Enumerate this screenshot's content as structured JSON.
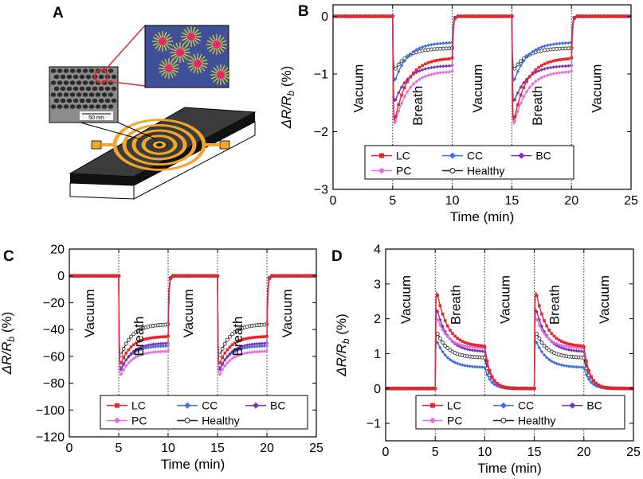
{
  "panel_labels": {
    "a": "A",
    "b": "B",
    "c": "C",
    "d": "D"
  },
  "schematic": {
    "scale_bar": "50 nm"
  },
  "colors": {
    "LC": "#e8262b",
    "CC": "#3f6fe0",
    "BC": "#7a33b4",
    "PC": "#e070e0",
    "Healthy": "#222222",
    "board_top": "#3b3b3b",
    "electrode": "#f2a72c",
    "inset_bg": "#3f4f98"
  },
  "chart_data": [
    {
      "panel": "B",
      "type": "line",
      "xlabel": "Time (min)",
      "ylabel": "ΔR/R",
      "ylabel_sub": "b",
      "ylabel_unit": "(%)",
      "xlim": [
        0,
        25
      ],
      "ylim": [
        -3,
        0.2
      ],
      "xticks": [
        0,
        5,
        10,
        15,
        20,
        25
      ],
      "yticks": [
        -3,
        -2,
        -1,
        0
      ],
      "phase_boundaries": [
        5,
        10,
        15,
        20
      ],
      "phases": [
        {
          "label": "Vacuum",
          "x": 2.5,
          "y": -1.25
        },
        {
          "label": "Breath",
          "x": 7.5,
          "y": -1.55
        },
        {
          "label": "Vacuum",
          "x": 12.5,
          "y": -1.25
        },
        {
          "label": "Breath",
          "x": 17.5,
          "y": -1.55
        },
        {
          "label": "Vacuum",
          "x": 22.5,
          "y": -1.25
        }
      ],
      "response": "decrease",
      "series": [
        {
          "name": "LC",
          "peak": -2.0,
          "end": -0.72
        },
        {
          "name": "CC",
          "peak": -1.25,
          "end": -0.45
        },
        {
          "name": "BC",
          "peak": -1.6,
          "end": -0.85
        },
        {
          "name": "PC",
          "peak": -2.05,
          "end": -0.95
        },
        {
          "name": "Healthy",
          "peak": -1.0,
          "end": -0.55
        }
      ]
    },
    {
      "panel": "C",
      "type": "line",
      "xlabel": "Time (min)",
      "ylabel": "ΔR/R",
      "ylabel_sub": "b",
      "ylabel_unit": "(%)",
      "xlim": [
        0,
        25
      ],
      "ylim": [
        -120,
        20
      ],
      "xticks": [
        0,
        5,
        10,
        15,
        20,
        25
      ],
      "yticks": [
        -120,
        -100,
        -80,
        -60,
        -40,
        -20,
        0,
        20
      ],
      "phase_boundaries": [
        5,
        10,
        15,
        20
      ],
      "phases": [
        {
          "label": "Vacuum",
          "x": 2.5,
          "y": -28
        },
        {
          "label": "Breath",
          "x": 7.5,
          "y": -45
        },
        {
          "label": "Vacuum",
          "x": 12.5,
          "y": -28
        },
        {
          "label": "Breath",
          "x": 17.5,
          "y": -45
        },
        {
          "label": "Vacuum",
          "x": 22.5,
          "y": -28
        }
      ],
      "response": "decrease",
      "series": [
        {
          "name": "LC",
          "peak": -70,
          "end": -45
        },
        {
          "name": "CC",
          "peak": -73,
          "end": -52
        },
        {
          "name": "BC",
          "peak": -75,
          "end": -50
        },
        {
          "name": "PC",
          "peak": -78,
          "end": -56
        },
        {
          "name": "Healthy",
          "peak": -65,
          "end": -36
        }
      ]
    },
    {
      "panel": "D",
      "type": "line",
      "xlabel": "Time (min)",
      "ylabel": "ΔR/R",
      "ylabel_sub": "b",
      "ylabel_unit": "(%)",
      "xlim": [
        0,
        25
      ],
      "ylim": [
        -1.5,
        4
      ],
      "xticks": [
        0,
        5,
        10,
        15,
        20,
        25
      ],
      "yticks": [
        -1,
        0,
        1,
        2,
        3,
        4
      ],
      "phase_boundaries": [
        5,
        10,
        15,
        20
      ],
      "phases": [
        {
          "label": "Vacuum",
          "x": 2.5,
          "y": 2.55
        },
        {
          "label": "Breath",
          "x": 7.5,
          "y": 2.4
        },
        {
          "label": "Vacuum",
          "x": 12.5,
          "y": 2.55
        },
        {
          "label": "Breath",
          "x": 17.5,
          "y": 2.4
        },
        {
          "label": "Vacuum",
          "x": 22.5,
          "y": 2.55
        }
      ],
      "response": "increase",
      "series": [
        {
          "name": "LC",
          "peak": 3.05,
          "end": 1.2
        },
        {
          "name": "CC",
          "peak": 1.5,
          "end": 0.6
        },
        {
          "name": "BC",
          "peak": 2.5,
          "end": 1.05
        },
        {
          "name": "PC",
          "peak": 2.2,
          "end": 1.15
        },
        {
          "name": "Healthy",
          "peak": 1.75,
          "end": 0.88
        }
      ]
    }
  ],
  "legend": [
    {
      "name": "LC",
      "marker": "square"
    },
    {
      "name": "CC",
      "marker": "diamond"
    },
    {
      "name": "BC",
      "marker": "diamond"
    },
    {
      "name": "PC",
      "marker": "diamond"
    },
    {
      "name": "Healthy",
      "marker": "open-circle"
    }
  ]
}
